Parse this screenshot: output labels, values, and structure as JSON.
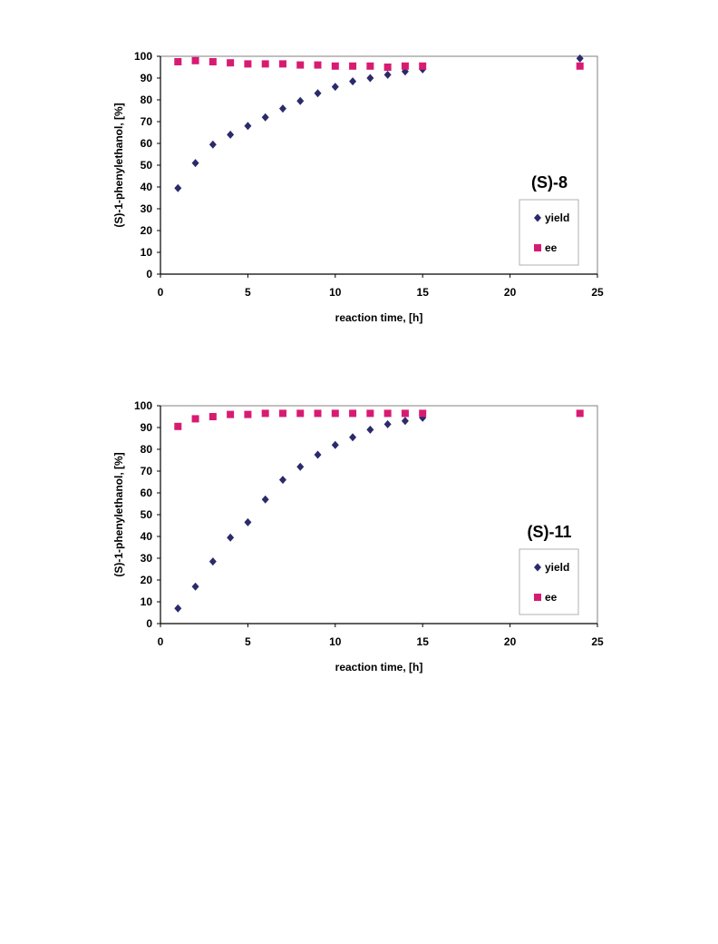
{
  "chart_data": [
    {
      "type": "scatter",
      "label": "(S)-8",
      "xlabel": "reaction time, [h]",
      "ylabel": "(S)-1-phenylethanol, [%]",
      "xlim": [
        0,
        25
      ],
      "ylim": [
        0,
        100
      ],
      "xticks": [
        0,
        5,
        10,
        15,
        20,
        25
      ],
      "yticks": [
        0,
        10,
        20,
        30,
        40,
        50,
        60,
        70,
        80,
        90,
        100
      ],
      "grid": false,
      "legend_position": "bottom-right",
      "series": [
        {
          "name": "yield",
          "marker": "diamond",
          "color": "#2b2a6b",
          "x": [
            1,
            2,
            3,
            4,
            5,
            6,
            7,
            8,
            9,
            10,
            11,
            12,
            13,
            14,
            15,
            24
          ],
          "y": [
            39.5,
            51,
            59.5,
            64,
            68,
            72,
            76,
            79.5,
            83,
            86,
            88.5,
            90,
            91.5,
            93,
            94,
            99
          ]
        },
        {
          "name": "ee",
          "marker": "square",
          "color": "#d81b72",
          "x": [
            1,
            2,
            3,
            4,
            5,
            6,
            7,
            8,
            9,
            10,
            11,
            12,
            13,
            14,
            15,
            24
          ],
          "y": [
            97.5,
            98,
            97.5,
            97,
            96.5,
            96.5,
            96.5,
            96,
            96,
            95.5,
            95.5,
            95.5,
            95,
            95.5,
            95.5,
            95.5
          ]
        }
      ]
    },
    {
      "type": "scatter",
      "label": "(S)-11",
      "xlabel": "reaction time, [h]",
      "ylabel": "(S)-1-phenylethanol, [%]",
      "xlim": [
        0,
        25
      ],
      "ylim": [
        0,
        100
      ],
      "xticks": [
        0,
        5,
        10,
        15,
        20,
        25
      ],
      "yticks": [
        0,
        10,
        20,
        30,
        40,
        50,
        60,
        70,
        80,
        90,
        100
      ],
      "grid": false,
      "legend_position": "bottom-right",
      "series": [
        {
          "name": "yield",
          "marker": "diamond",
          "color": "#2b2a6b",
          "x": [
            1,
            2,
            3,
            4,
            5,
            6,
            7,
            8,
            9,
            10,
            11,
            12,
            13,
            14,
            15
          ],
          "y": [
            7,
            17,
            28.5,
            39.5,
            46.5,
            57,
            66,
            72,
            77.5,
            82,
            85.5,
            89,
            91.5,
            93,
            94.5
          ]
        },
        {
          "name": "ee",
          "marker": "square",
          "color": "#d81b72",
          "x": [
            1,
            2,
            3,
            4,
            5,
            6,
            7,
            8,
            9,
            10,
            11,
            12,
            13,
            14,
            15,
            24
          ],
          "y": [
            90.5,
            94,
            95,
            96,
            96,
            96.5,
            96.5,
            96.5,
            96.5,
            96.5,
            96.5,
            96.5,
            96.5,
            96.5,
            96.5,
            96.5
          ]
        }
      ]
    }
  ]
}
